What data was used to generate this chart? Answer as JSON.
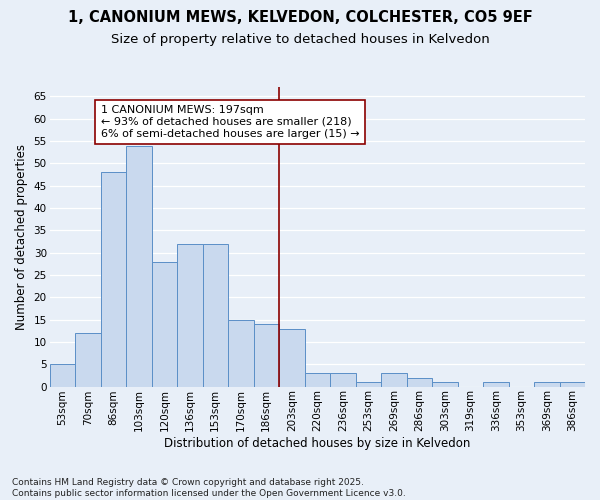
{
  "title": "1, CANONIUM MEWS, KELVEDON, COLCHESTER, CO5 9EF",
  "subtitle": "Size of property relative to detached houses in Kelvedon",
  "xlabel": "Distribution of detached houses by size in Kelvedon",
  "ylabel": "Number of detached properties",
  "categories": [
    "53sqm",
    "70sqm",
    "86sqm",
    "103sqm",
    "120sqm",
    "136sqm",
    "153sqm",
    "170sqm",
    "186sqm",
    "203sqm",
    "220sqm",
    "236sqm",
    "253sqm",
    "269sqm",
    "286sqm",
    "303sqm",
    "319sqm",
    "336sqm",
    "353sqm",
    "369sqm",
    "386sqm"
  ],
  "values": [
    5,
    12,
    48,
    54,
    28,
    32,
    32,
    15,
    14,
    13,
    3,
    3,
    1,
    3,
    2,
    1,
    0,
    1,
    0,
    1,
    1
  ],
  "bar_color": "#c9d9ee",
  "bar_edge_color": "#5b8fc7",
  "background_color": "#e8eff8",
  "grid_color": "#ffffff",
  "vline_color": "#8b0000",
  "annotation_text": "1 CANONIUM MEWS: 197sqm\n← 93% of detached houses are smaller (218)\n6% of semi-detached houses are larger (15) →",
  "annotation_box_color": "#ffffff",
  "annotation_box_edge": "#8b0000",
  "ylim": [
    0,
    67
  ],
  "yticks": [
    0,
    5,
    10,
    15,
    20,
    25,
    30,
    35,
    40,
    45,
    50,
    55,
    60,
    65
  ],
  "footer": "Contains HM Land Registry data © Crown copyright and database right 2025.\nContains public sector information licensed under the Open Government Licence v3.0.",
  "title_fontsize": 10.5,
  "subtitle_fontsize": 9.5,
  "xlabel_fontsize": 8.5,
  "ylabel_fontsize": 8.5,
  "tick_fontsize": 7.5,
  "annotation_fontsize": 8,
  "footer_fontsize": 6.5
}
